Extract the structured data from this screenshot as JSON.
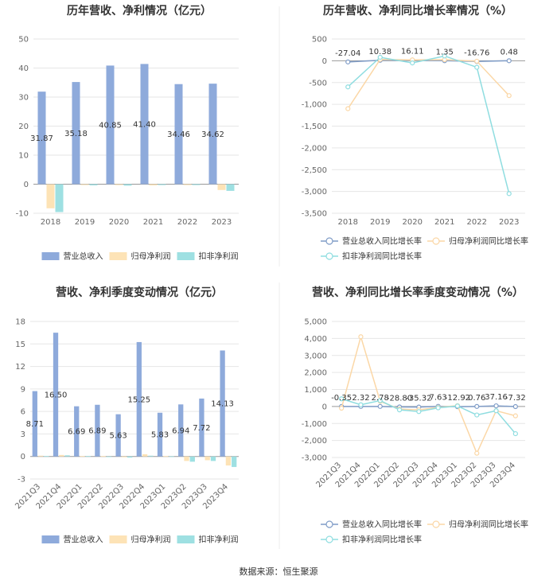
{
  "colors": {
    "revenue": "#8eaadb",
    "netprofit": "#fde3b6",
    "deducted": "#9ee0e2",
    "revenue_line": "#7f9cc7",
    "netprofit_line": "#fbd7a6",
    "deducted_line": "#8fdde0",
    "grid": "#e6e6e6",
    "axis": "#999999"
  },
  "source": "数据来源：恒生聚源",
  "chart_data": [
    {
      "id": "annual-values",
      "type": "bar",
      "title": "历年营收、净利情况（亿元）",
      "categories": [
        "2018",
        "2019",
        "2020",
        "2021",
        "2022",
        "2023"
      ],
      "ylim": [
        -10,
        50
      ],
      "yticks": [
        -10,
        0,
        10,
        20,
        30,
        40,
        50
      ],
      "ytick_labels": [
        "-10",
        "0",
        "10",
        "20",
        "30",
        "40",
        "50"
      ],
      "series": [
        {
          "name": "营业总收入",
          "values": [
            31.87,
            35.18,
            40.85,
            41.4,
            34.46,
            34.62
          ],
          "labels": [
            "31.87",
            "35.18",
            "40.85",
            "41.40",
            "34.46",
            "34.62"
          ]
        },
        {
          "name": "归母净利润",
          "values": [
            -8.3,
            -0.3,
            -0.3,
            -0.4,
            -0.3,
            -2.0
          ]
        },
        {
          "name": "扣非净利润",
          "values": [
            -9.6,
            -0.4,
            -0.5,
            -0.3,
            -0.3,
            -2.3
          ]
        }
      ]
    },
    {
      "id": "annual-growth",
      "type": "line",
      "title": "历年营收、净利同比增长率情况（%）",
      "categories": [
        "2018",
        "2019",
        "2020",
        "2021",
        "2022",
        "2023"
      ],
      "ylim": [
        -3500,
        500
      ],
      "yticks": [
        -3500,
        -3000,
        -2500,
        -2000,
        -1500,
        -1000,
        -500,
        0,
        500
      ],
      "ytick_labels": [
        "-3,500",
        "-3,000",
        "-2,500",
        "-2,000",
        "-1,500",
        "-1,000",
        "-500",
        "0",
        "500"
      ],
      "series": [
        {
          "name": "营业总收入同比增长率",
          "values": [
            -27.04,
            10.38,
            16.11,
            1.35,
            -16.76,
            0.48
          ],
          "labels": [
            "-27.04",
            "10.38",
            "16.11",
            "1.35",
            "-16.76",
            "0.48"
          ]
        },
        {
          "name": "归母净利润同比增长率",
          "values": [
            -1100,
            30,
            20,
            25,
            -10,
            -800
          ]
        },
        {
          "name": "扣非净利润同比增长率",
          "values": [
            -600,
            80,
            -50,
            110,
            -150,
            -3050
          ]
        }
      ]
    },
    {
      "id": "quarterly-values",
      "type": "bar",
      "title": "营收、净利季度变动情况（亿元）",
      "categories": [
        "2021Q3",
        "2021Q4",
        "2022Q1",
        "2022Q2",
        "2022Q3",
        "2022Q4",
        "2023Q1",
        "2023Q2",
        "2023Q3",
        "2023Q4"
      ],
      "ylim": [
        -3,
        18
      ],
      "yticks": [
        -3,
        0,
        3,
        6,
        9,
        12,
        15,
        18
      ],
      "ytick_labels": [
        "-3",
        "0",
        "3",
        "6",
        "9",
        "12",
        "15",
        "18"
      ],
      "series": [
        {
          "name": "营业总收入",
          "values": [
            8.71,
            16.5,
            6.69,
            6.89,
            5.63,
            15.25,
            5.83,
            6.94,
            7.72,
            14.13
          ],
          "labels": [
            "8.71",
            "16.50",
            "6.69",
            "6.89",
            "5.63",
            "15.25",
            "5.83",
            "6.94",
            "7.72",
            "14.13"
          ]
        },
        {
          "name": "归母净利润",
          "values": [
            0.1,
            0.2,
            0.05,
            0.05,
            -0.1,
            0.3,
            0.05,
            -0.6,
            -0.5,
            -1.2
          ]
        },
        {
          "name": "扣非净利润",
          "values": [
            0.05,
            0.15,
            0.05,
            -0.05,
            -0.15,
            0.1,
            0.02,
            -0.7,
            -0.6,
            -1.4
          ]
        }
      ]
    },
    {
      "id": "quarterly-growth",
      "type": "line",
      "title": "营收、净利同比增长率季度变动情况（%）",
      "categories": [
        "2021Q3",
        "2021Q4",
        "2022Q1",
        "2022Q2",
        "2022Q3",
        "2022Q4",
        "2023Q1",
        "2023Q2",
        "2023Q3",
        "2023Q4"
      ],
      "ylim": [
        -3000,
        5000
      ],
      "yticks": [
        -3000,
        -2000,
        -1000,
        0,
        1000,
        2000,
        3000,
        4000,
        5000
      ],
      "ytick_labels": [
        "-3,000",
        "-2,000",
        "-1,000",
        "0",
        "1,000",
        "2,000",
        "3,000",
        "4,000",
        "5,000"
      ],
      "series": [
        {
          "name": "营业总收入同比增长率",
          "values": [
            -0.35,
            2.32,
            2.78,
            -28.8,
            -35.32,
            7.63,
            -12.92,
            0.76,
            37.16,
            -7.32
          ],
          "labels": [
            "-0.35",
            "2.32",
            "2.78",
            "-28.80",
            "-35.32",
            "7.63",
            "-12.92",
            "0.76",
            "37.16",
            "-7.32"
          ]
        },
        {
          "name": "归母净利润同比增长率",
          "values": [
            -100,
            4100,
            300,
            -150,
            -200,
            -50,
            50,
            -2750,
            -250,
            -550
          ]
        },
        {
          "name": "扣非净利润同比增长率",
          "values": [
            450,
            100,
            350,
            -200,
            -300,
            -80,
            30,
            -500,
            -250,
            -1600
          ]
        }
      ]
    }
  ]
}
